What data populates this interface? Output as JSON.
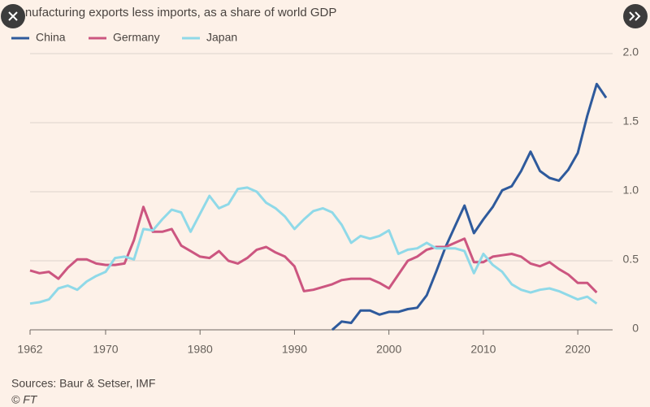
{
  "chart_data": {
    "type": "line",
    "title": "Manufacturing exports less imports, as a share of world GDP",
    "source": "Sources: Baur & Setser, IMF",
    "credit": "© FT",
    "x": [
      1962,
      1963,
      1964,
      1965,
      1966,
      1967,
      1968,
      1969,
      1970,
      1971,
      1972,
      1973,
      1974,
      1975,
      1976,
      1977,
      1978,
      1979,
      1980,
      1981,
      1982,
      1983,
      1984,
      1985,
      1986,
      1987,
      1988,
      1989,
      1990,
      1991,
      1992,
      1993,
      1994,
      1995,
      1996,
      1997,
      1998,
      1999,
      2000,
      2001,
      2002,
      2003,
      2004,
      2005,
      2006,
      2007,
      2008,
      2009,
      2010,
      2011,
      2012,
      2013,
      2014,
      2015,
      2016,
      2017,
      2018,
      2019,
      2020,
      2021,
      2022,
      2023
    ],
    "series": [
      {
        "name": "China",
        "color": "#2e5a9c",
        "values": [
          null,
          null,
          null,
          null,
          null,
          null,
          null,
          null,
          null,
          null,
          null,
          null,
          null,
          null,
          null,
          null,
          null,
          null,
          null,
          null,
          null,
          null,
          null,
          null,
          null,
          null,
          null,
          null,
          null,
          null,
          null,
          null,
          0.0,
          0.06,
          0.05,
          0.14,
          0.14,
          0.11,
          0.13,
          0.13,
          0.15,
          0.16,
          0.25,
          0.42,
          0.6,
          0.75,
          0.9,
          0.7,
          0.8,
          0.89,
          1.01,
          1.04,
          1.15,
          1.29,
          1.15,
          1.1,
          1.08,
          1.16,
          1.28,
          1.55,
          1.78,
          1.68
        ]
      },
      {
        "name": "Germany",
        "color": "#cc5680",
        "values": [
          0.43,
          0.41,
          0.42,
          0.37,
          0.45,
          0.51,
          0.51,
          0.48,
          0.47,
          0.47,
          0.48,
          0.65,
          0.89,
          0.71,
          0.71,
          0.73,
          0.61,
          0.57,
          0.53,
          0.52,
          0.57,
          0.5,
          0.48,
          0.52,
          0.58,
          0.6,
          0.56,
          0.53,
          0.46,
          0.28,
          0.29,
          0.31,
          0.33,
          0.36,
          0.37,
          0.37,
          0.37,
          0.34,
          0.3,
          0.4,
          0.5,
          0.53,
          0.58,
          0.6,
          0.6,
          0.63,
          0.66,
          0.49,
          0.49,
          0.53,
          0.54,
          0.55,
          0.53,
          0.48,
          0.46,
          0.49,
          0.44,
          0.4,
          0.34,
          0.34,
          0.27,
          null
        ]
      },
      {
        "name": "Japan",
        "color": "#8fd9e8",
        "values": [
          0.19,
          0.2,
          0.22,
          0.3,
          0.32,
          0.29,
          0.35,
          0.39,
          0.42,
          0.52,
          0.53,
          0.51,
          0.73,
          0.72,
          0.8,
          0.87,
          0.85,
          0.71,
          0.84,
          0.97,
          0.88,
          0.91,
          1.02,
          1.03,
          1.0,
          0.92,
          0.88,
          0.82,
          0.73,
          0.8,
          0.86,
          0.88,
          0.85,
          0.76,
          0.63,
          0.68,
          0.66,
          0.68,
          0.72,
          0.55,
          0.58,
          0.59,
          0.63,
          0.59,
          0.59,
          0.59,
          0.57,
          0.41,
          0.55,
          0.47,
          0.42,
          0.33,
          0.29,
          0.27,
          0.29,
          0.3,
          0.28,
          0.25,
          0.22,
          0.24,
          0.19,
          null
        ]
      }
    ],
    "xlim": [
      1962,
      2023
    ],
    "xticks": [
      1962,
      1970,
      1980,
      1990,
      2000,
      2010,
      2020
    ],
    "ylim": [
      0,
      2
    ],
    "yticks": [
      0,
      0.5,
      {
        "value": 1,
        "label": "1.0"
      },
      1.5,
      {
        "value": 2,
        "label": "2.0"
      }
    ],
    "grid": true
  }
}
